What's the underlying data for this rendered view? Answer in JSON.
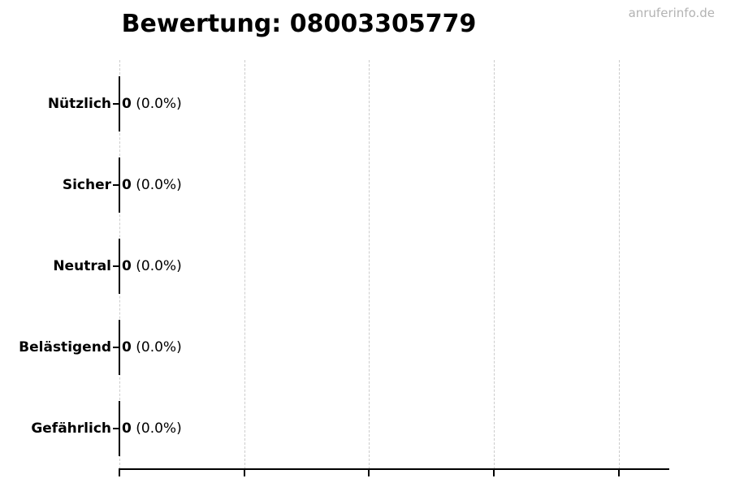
{
  "page": {
    "watermark": "anruferinfo.de"
  },
  "chart_data": {
    "type": "bar",
    "orientation": "horizontal",
    "title": "Bewertung: 08003305779",
    "categories": [
      "Nützlich",
      "Sicher",
      "Neutral",
      "Belästigend",
      "Gefährlich"
    ],
    "values": [
      0,
      0,
      0,
      0,
      0
    ],
    "bar_labels": [
      {
        "value": "0",
        "pct": "(0.0%)"
      },
      {
        "value": "0",
        "pct": "(0.0%)"
      },
      {
        "value": "0",
        "pct": "(0.0%)"
      },
      {
        "value": "0",
        "pct": "(0.0%)"
      },
      {
        "value": "0",
        "pct": "(0.0%)"
      }
    ],
    "xlabel": "",
    "ylabel": "",
    "xlim": [
      0,
      4.4
    ],
    "xticks": [
      0,
      1,
      2,
      3,
      4
    ],
    "xtick_labels_visible": false,
    "grid": "vertical-dashed",
    "legend": "none",
    "colors": {
      "bar_edge": "#000000",
      "grid": "#cccccc",
      "axis": "#000000",
      "text": "#000000",
      "watermark": "#b3b3b3",
      "background": "#ffffff"
    }
  }
}
